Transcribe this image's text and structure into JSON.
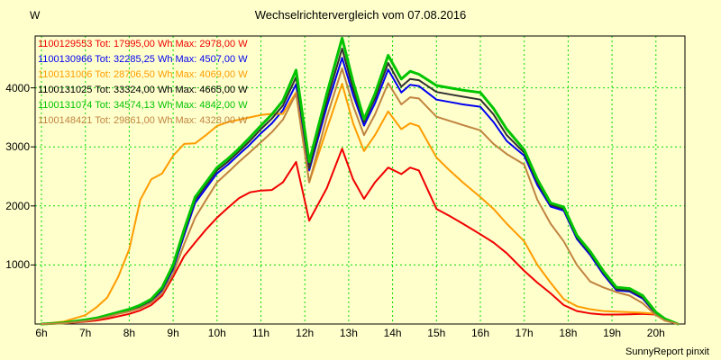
{
  "footer": "SunnyReport pinxit",
  "colors": {
    "background": "#FFFFCC",
    "grid": "#00DC00",
    "axis": "#000000",
    "text": "#000000"
  },
  "chart_data": {
    "type": "line",
    "title": "Wechselrichtervergleich vom 07.08.2016",
    "xlabel": "",
    "ylabel": "W",
    "grid": true,
    "legend_position": "top-left",
    "xlim_hours": [
      5.86,
      20.66
    ],
    "ylim": [
      0,
      4880
    ],
    "x_ticks": [
      {
        "label": "6h",
        "hour": 6
      },
      {
        "label": "7h",
        "hour": 7
      },
      {
        "label": "8h",
        "hour": 8
      },
      {
        "label": "9h",
        "hour": 9
      },
      {
        "label": "10h",
        "hour": 10
      },
      {
        "label": "11h",
        "hour": 11
      },
      {
        "label": "12h",
        "hour": 12
      },
      {
        "label": "13h",
        "hour": 13
      },
      {
        "label": "14h",
        "hour": 14
      },
      {
        "label": "15h",
        "hour": 15
      },
      {
        "label": "16h",
        "hour": 16
      },
      {
        "label": "17h",
        "hour": 17
      },
      {
        "label": "18h",
        "hour": 18
      },
      {
        "label": "19h",
        "hour": 19
      },
      {
        "label": "20h",
        "hour": 20
      }
    ],
    "y_ticks": [
      {
        "label": "1000",
        "value": 1000
      },
      {
        "label": "2000",
        "value": 2000
      },
      {
        "label": "3000",
        "value": 3000
      },
      {
        "label": "4000",
        "value": 4000
      }
    ],
    "x_hours": [
      6,
      6.5,
      7,
      7.25,
      7.5,
      7.75,
      8,
      8.25,
      8.5,
      8.75,
      9,
      9.25,
      9.5,
      9.75,
      10,
      10.25,
      10.5,
      10.75,
      11,
      11.25,
      11.5,
      11.8,
      12.1,
      12.5,
      12.85,
      13.1,
      13.35,
      13.6,
      13.9,
      14.2,
      14.4,
      14.6,
      15,
      15.3,
      15.6,
      16,
      16.3,
      16.6,
      17,
      17.3,
      17.6,
      17.9,
      18.2,
      18.5,
      18.8,
      19.1,
      19.4,
      19.7,
      20,
      20.2,
      20.5
    ],
    "series": [
      {
        "name": "1100129553",
        "label": "1100129553 Tot: 17995,00 Wh Max: 2978,00 W",
        "total_wh": "17995,00",
        "max_w": "2978,00",
        "color": "#F00000",
        "width": 2,
        "values": [
          0,
          10,
          40,
          60,
          90,
          130,
          170,
          230,
          320,
          480,
          800,
          1150,
          1380,
          1600,
          1800,
          1970,
          2130,
          2230,
          2260,
          2270,
          2400,
          2745,
          1750,
          2300,
          2970,
          2450,
          2120,
          2400,
          2650,
          2540,
          2650,
          2600,
          1950,
          1830,
          1700,
          1520,
          1380,
          1200,
          900,
          700,
          520,
          320,
          220,
          180,
          160,
          160,
          165,
          170,
          160,
          80,
          0
        ]
      },
      {
        "name": "1100130966",
        "label": "1100130966 Tot: 32285,25 Wh Max: 4507,00 W",
        "total_wh": "32285,25",
        "max_w": "4507,00",
        "color": "#0000F0",
        "width": 2,
        "values": [
          0,
          15,
          55,
          85,
          130,
          180,
          230,
          290,
          390,
          570,
          930,
          1500,
          2050,
          2300,
          2550,
          2700,
          2870,
          3040,
          3230,
          3400,
          3620,
          4060,
          2600,
          3680,
          4507,
          3880,
          3360,
          3740,
          4310,
          3920,
          4050,
          4030,
          3800,
          3760,
          3720,
          3680,
          3420,
          3100,
          2850,
          2350,
          1990,
          1920,
          1440,
          1170,
          840,
          570,
          550,
          430,
          170,
          70,
          0
        ]
      },
      {
        "name": "1100131006",
        "label": "1100131006 Tot: 28706,50 Wh Max: 4069,00 W",
        "total_wh": "28706,50",
        "max_w": "4069,00",
        "color": "#FF9C00",
        "width": 2,
        "values": [
          0,
          40,
          150,
          280,
          450,
          800,
          1265,
          2100,
          2450,
          2550,
          2850,
          3050,
          3060,
          3200,
          3355,
          3420,
          3460,
          3500,
          3540,
          3560,
          3560,
          3920,
          2400,
          3300,
          4069,
          3400,
          2930,
          3200,
          3600,
          3300,
          3400,
          3350,
          2820,
          2600,
          2400,
          2150,
          1950,
          1700,
          1400,
          1000,
          700,
          420,
          300,
          250,
          220,
          210,
          200,
          190,
          170,
          80,
          0
        ]
      },
      {
        "name": "1100131025",
        "label": "1100131025 Tot: 33324,00 Wh Max: 4665,00 W",
        "total_wh": "33324,00",
        "max_w": "4665,00",
        "color": "#303030",
        "width": 2,
        "values": [
          0,
          15,
          60,
          90,
          140,
          190,
          240,
          300,
          400,
          590,
          960,
          1550,
          2100,
          2350,
          2600,
          2750,
          2920,
          3100,
          3300,
          3480,
          3700,
          4180,
          2640,
          3780,
          4665,
          3980,
          3420,
          3820,
          4420,
          4020,
          4150,
          4130,
          3930,
          3890,
          3850,
          3800,
          3550,
          3200,
          2900,
          2400,
          2020,
          1950,
          1470,
          1200,
          870,
          590,
          570,
          450,
          180,
          80,
          0
        ]
      },
      {
        "name": "1100131074",
        "label": "1100131074 Tot: 34574,13 Wh Max: 4842,00 W",
        "total_wh": "34574,13",
        "max_w": "4842,00",
        "color": "#00C400",
        "width": 3,
        "values": [
          0,
          20,
          70,
          100,
          150,
          200,
          250,
          320,
          420,
          620,
          1000,
          1600,
          2150,
          2400,
          2650,
          2800,
          2970,
          3160,
          3360,
          3550,
          3780,
          4300,
          2750,
          3900,
          4842,
          4100,
          3470,
          3900,
          4550,
          4150,
          4280,
          4230,
          4040,
          4000,
          3960,
          3920,
          3650,
          3300,
          2950,
          2450,
          2050,
          1980,
          1500,
          1230,
          900,
          620,
          600,
          480,
          200,
          90,
          0
        ]
      },
      {
        "name": "1100148421",
        "label": "1100148421 Tot: 29861,00 Wh Max: 4328,00 W",
        "total_wh": "29861,00",
        "max_w": "4328,00",
        "color": "#C08440",
        "width": 2,
        "values": [
          0,
          10,
          50,
          80,
          120,
          170,
          210,
          270,
          360,
          520,
          850,
          1350,
          1800,
          2100,
          2400,
          2570,
          2745,
          2910,
          3080,
          3250,
          3460,
          3900,
          2400,
          3500,
          4328,
          3700,
          3200,
          3550,
          4080,
          3720,
          3840,
          3820,
          3510,
          3440,
          3370,
          3280,
          3050,
          2880,
          2700,
          2100,
          1700,
          1400,
          1000,
          720,
          620,
          540,
          480,
          350,
          150,
          60,
          0
        ]
      }
    ]
  }
}
